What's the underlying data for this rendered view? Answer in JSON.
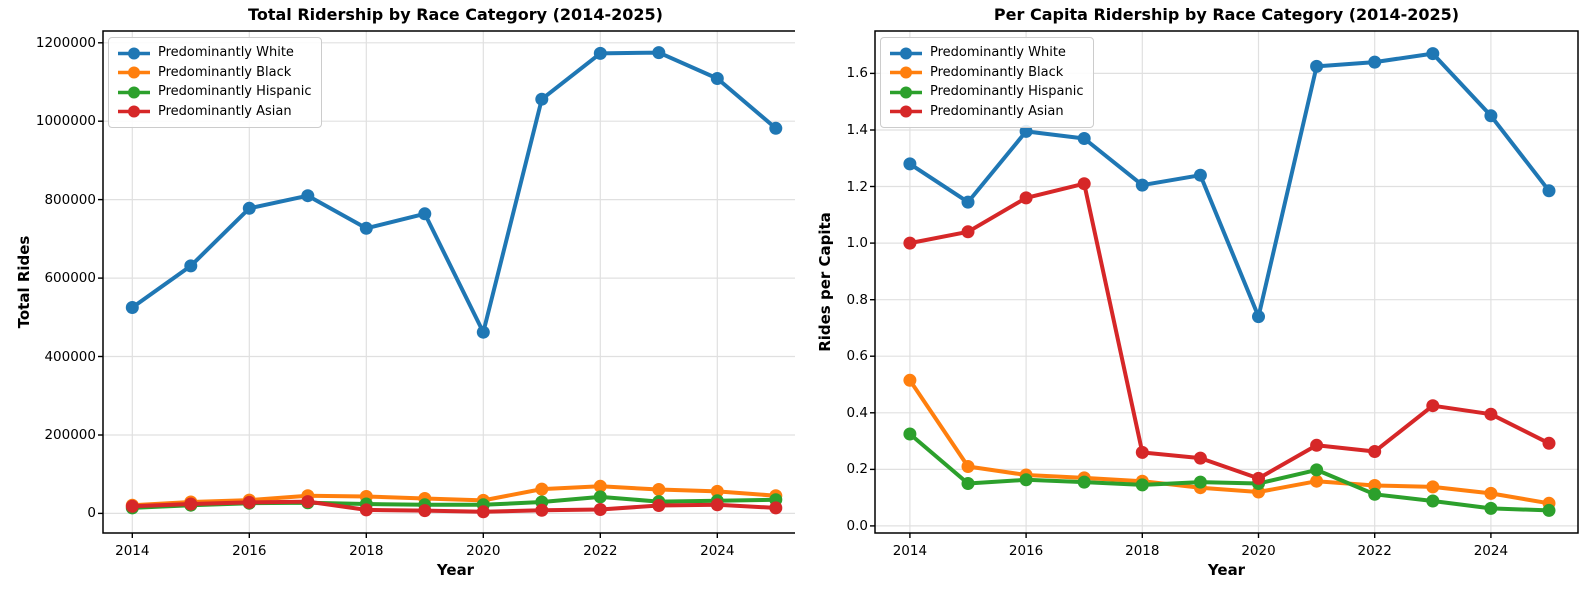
{
  "figure": {
    "background": "#ffffff"
  },
  "chart_data": [
    {
      "type": "line",
      "title": "Total Ridership by Race Category (2014-2025)",
      "xlabel": "Year",
      "ylabel": "Total Rides",
      "x": [
        2014,
        2015,
        2016,
        2017,
        2018,
        2019,
        2020,
        2021,
        2022,
        2023,
        2024,
        2025
      ],
      "xlim": [
        2013.5,
        2025.55
      ],
      "ylim": [
        -50000,
        1230000
      ],
      "xtick_values": [
        2014,
        2016,
        2018,
        2020,
        2022,
        2024
      ],
      "xtick_labels": [
        "2014",
        "2016",
        "2018",
        "2020",
        "2022",
        "2024"
      ],
      "ytick_values": [
        0,
        200000,
        400000,
        600000,
        800000,
        1000000,
        1200000
      ],
      "ytick_labels": [
        "0",
        "200000",
        "400000",
        "600000",
        "800000",
        "1000000",
        "1200000"
      ],
      "grid": true,
      "legend_position": "upper left",
      "series": [
        {
          "name": "Predominantly White",
          "color": "#1f77b4",
          "marker": "circle",
          "values": [
            525000,
            631000,
            778000,
            810000,
            727000,
            764000,
            462000,
            1056000,
            1173000,
            1175000,
            1109000,
            982000
          ]
        },
        {
          "name": "Predominantly Black",
          "color": "#ff7f0e",
          "marker": "circle",
          "values": [
            21000,
            29000,
            34000,
            45000,
            43000,
            38000,
            33000,
            62000,
            69000,
            61000,
            56000,
            45000
          ]
        },
        {
          "name": "Predominantly Hispanic",
          "color": "#2ca02c",
          "marker": "circle",
          "values": [
            14000,
            21000,
            26000,
            27000,
            24000,
            22000,
            22000,
            29000,
            42000,
            30000,
            32000,
            35000
          ]
        },
        {
          "name": "Predominantly Asian",
          "color": "#d62728",
          "marker": "circle",
          "values": [
            18000,
            24000,
            28000,
            30000,
            9000,
            7000,
            4000,
            8000,
            10000,
            20000,
            22000,
            14000
          ]
        }
      ]
    },
    {
      "type": "line",
      "title": "Per Capita Ridership by Race Category (2014-2025)",
      "xlabel": "Year",
      "ylabel": "Rides per Capita",
      "x": [
        2014,
        2015,
        2016,
        2017,
        2018,
        2019,
        2020,
        2021,
        2022,
        2023,
        2024,
        2025
      ],
      "xlim": [
        2013.4,
        2025.5
      ],
      "ylim": [
        -0.025,
        1.75
      ],
      "xtick_values": [
        2014,
        2016,
        2018,
        2020,
        2022,
        2024
      ],
      "xtick_labels": [
        "2014",
        "2016",
        "2018",
        "2020",
        "2022",
        "2024"
      ],
      "ytick_values": [
        0.0,
        0.2,
        0.4,
        0.6,
        0.8,
        1.0,
        1.2,
        1.4,
        1.6
      ],
      "ytick_labels": [
        "0.0",
        "0.2",
        "0.4",
        "0.6",
        "0.8",
        "1.0",
        "1.2",
        "1.4",
        "1.6"
      ],
      "grid": true,
      "legend_position": "upper left",
      "series": [
        {
          "name": "Predominantly White",
          "color": "#1f77b4",
          "marker": "circle",
          "values": [
            1.28,
            1.145,
            1.395,
            1.37,
            1.205,
            1.24,
            0.74,
            1.625,
            1.64,
            1.67,
            1.45,
            1.185
          ]
        },
        {
          "name": "Predominantly Black",
          "color": "#ff7f0e",
          "marker": "circle",
          "values": [
            0.515,
            0.21,
            0.18,
            0.17,
            0.158,
            0.135,
            0.12,
            0.158,
            0.143,
            0.138,
            0.115,
            0.08
          ]
        },
        {
          "name": "Predominantly Hispanic",
          "color": "#2ca02c",
          "marker": "circle",
          "values": [
            0.325,
            0.15,
            0.163,
            0.155,
            0.145,
            0.155,
            0.15,
            0.198,
            0.112,
            0.088,
            0.062,
            0.055
          ]
        },
        {
          "name": "Predominantly Asian",
          "color": "#d62728",
          "marker": "circle",
          "values": [
            1.0,
            1.04,
            1.16,
            1.21,
            0.26,
            0.24,
            0.168,
            0.285,
            0.263,
            0.425,
            0.395,
            0.292
          ]
        }
      ]
    }
  ]
}
